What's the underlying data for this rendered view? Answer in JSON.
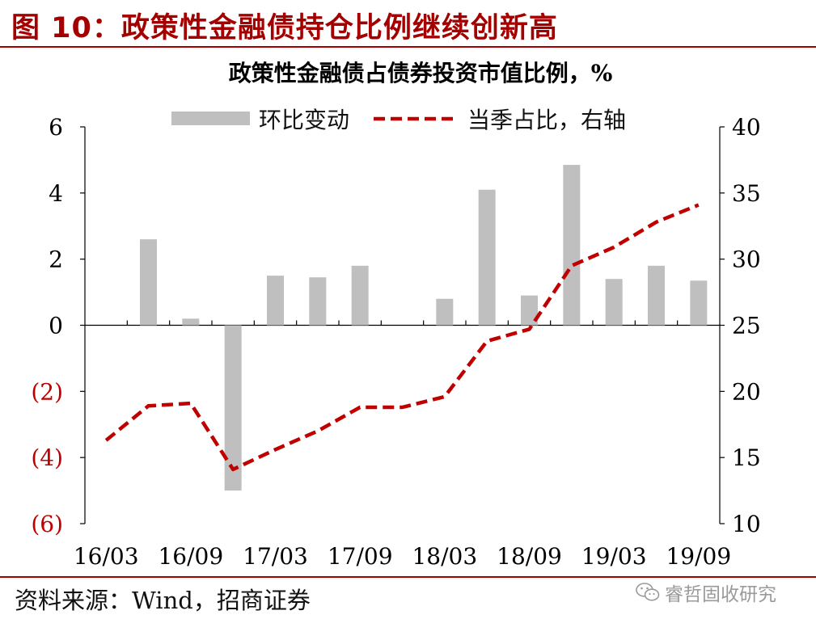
{
  "figure": {
    "title": "图 10：政策性金融债持仓比例继续创新高",
    "source": "资料来源：Wind，招商证券",
    "watermark": "睿哲固收研究",
    "watermark_icon": "wechat-icon"
  },
  "colors": {
    "accent": "#a50000",
    "bar": "#bfbfbf",
    "line": "#c00000",
    "negative_label": "#c00000"
  },
  "chart_data": {
    "type": "bar",
    "title": "政策性金融债占债券投资市值比例，%",
    "legend": [
      "环比变动",
      "当季占比，右轴"
    ],
    "legend_placement": "top",
    "grid": false,
    "categories": [
      "16/03",
      "16/06",
      "16/09",
      "16/12",
      "17/03",
      "17/06",
      "17/09",
      "17/12",
      "18/03",
      "18/06",
      "18/09",
      "18/12",
      "19/03",
      "19/06",
      "19/09"
    ],
    "x_tick_labels": [
      "16/03",
      "16/09",
      "17/03",
      "17/09",
      "18/03",
      "18/09",
      "19/03",
      "19/09"
    ],
    "series": [
      {
        "name": "环比变动",
        "type": "bar",
        "axis": "left",
        "values": [
          null,
          2.6,
          0.2,
          -5.0,
          1.5,
          1.45,
          1.8,
          null,
          0.8,
          4.1,
          0.9,
          4.85,
          1.4,
          1.8,
          1.35
        ]
      },
      {
        "name": "当季占比，右轴",
        "type": "line",
        "style": "dashed",
        "axis": "right",
        "values": [
          16.3,
          18.9,
          19.1,
          14.1,
          15.6,
          17.0,
          18.8,
          18.8,
          19.6,
          23.8,
          24.7,
          29.5,
          30.9,
          32.8,
          34.1
        ]
      }
    ],
    "y_left": {
      "ylim": [
        -6,
        6
      ],
      "ticks": [
        6,
        4,
        2,
        0,
        -2,
        -4,
        -6
      ],
      "tick_labels": [
        "6",
        "4",
        "2",
        "0",
        "(2)",
        "(4)",
        "(6)"
      ]
    },
    "y_right": {
      "ylim": [
        10,
        40
      ],
      "ticks": [
        40,
        35,
        30,
        25,
        20,
        15,
        10
      ],
      "tick_labels": [
        "40",
        "35",
        "30",
        "25",
        "20",
        "15",
        "10"
      ]
    }
  }
}
